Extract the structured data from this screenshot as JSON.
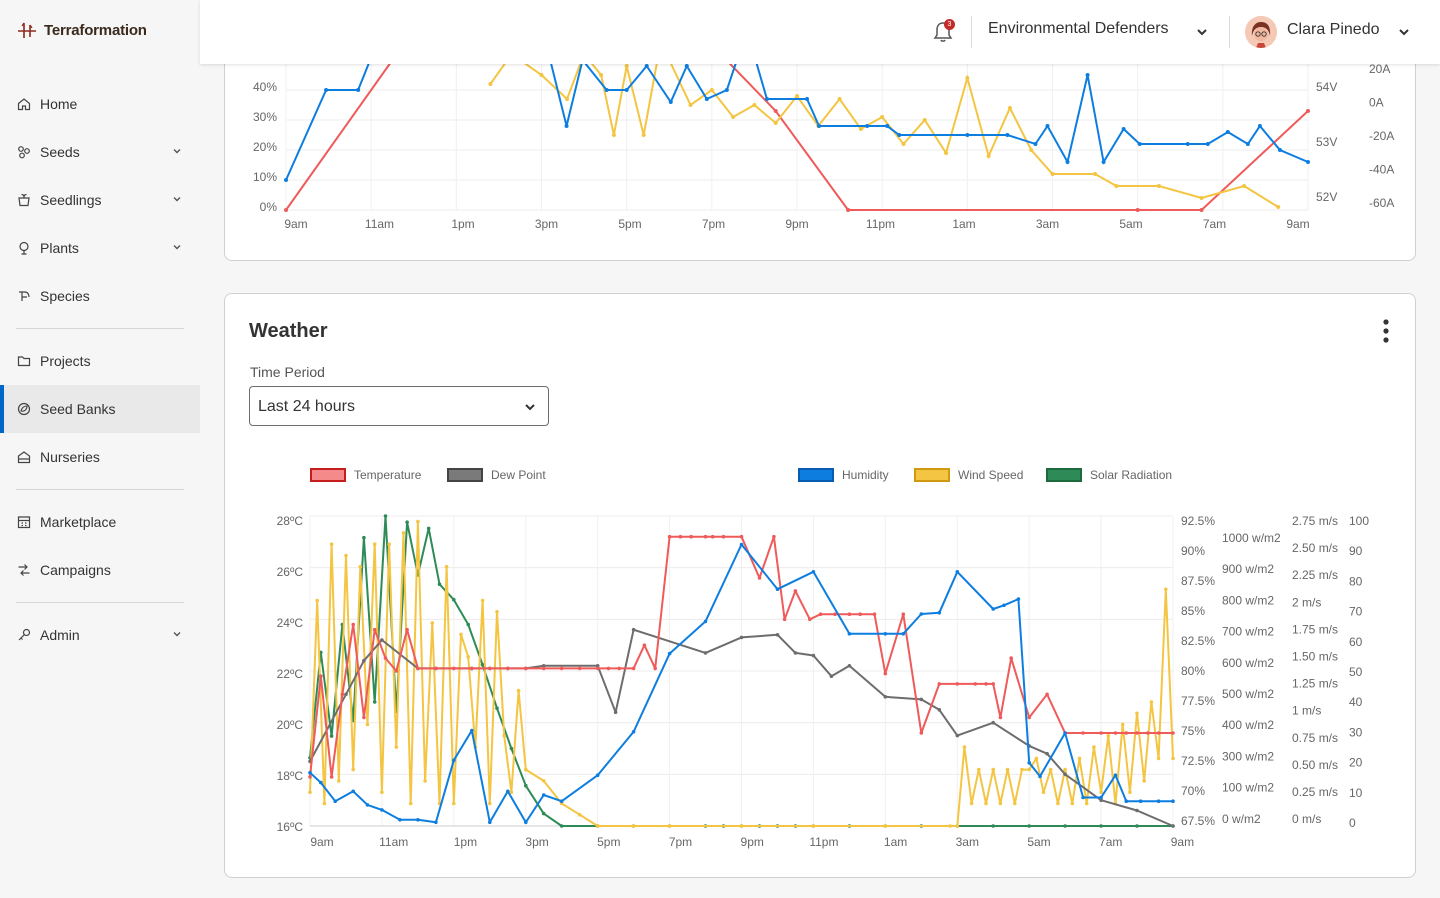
{
  "brand": {
    "name": "Terraformation"
  },
  "sidebar": {
    "items": [
      {
        "label": "Home",
        "icon": "home-icon",
        "chevron": false
      },
      {
        "label": "Seeds",
        "icon": "seeds-icon",
        "chevron": true
      },
      {
        "label": "Seedlings",
        "icon": "seedlings-icon",
        "chevron": true
      },
      {
        "label": "Plants",
        "icon": "plants-icon",
        "chevron": true
      },
      {
        "label": "Species",
        "icon": "species-icon",
        "chevron": false
      },
      {
        "label": "Projects",
        "icon": "folder-icon",
        "chevron": false
      },
      {
        "label": "Seed Banks",
        "icon": "seed-bank-icon",
        "chevron": false,
        "active": true
      },
      {
        "label": "Nurseries",
        "icon": "nursery-icon",
        "chevron": false
      },
      {
        "label": "Marketplace",
        "icon": "marketplace-icon",
        "chevron": false
      },
      {
        "label": "Campaigns",
        "icon": "campaigns-icon",
        "chevron": false
      },
      {
        "label": "Admin",
        "icon": "key-icon",
        "chevron": true
      }
    ]
  },
  "header": {
    "notification_count": "3",
    "organization": "Environmental Defenders",
    "user_name": "Clara Pinedo"
  },
  "top_chart": {
    "left_ticks": [
      "40%",
      "30%",
      "20%",
      "10%",
      "0%"
    ],
    "right_ticks_a": [
      "54V",
      "53V",
      "52V"
    ],
    "right_ticks_b": [
      "20A",
      "0A",
      "-20A",
      "-40A",
      "-60A"
    ],
    "x_ticks": [
      "9am",
      "11am",
      "1pm",
      "3pm",
      "5pm",
      "7pm",
      "9pm",
      "11pm",
      "1am",
      "3am",
      "5am",
      "7am",
      "9am"
    ],
    "colors": {
      "red": "#ef5a5a",
      "blue": "#0d7ee0",
      "yellow": "#f4c542"
    }
  },
  "weather": {
    "title": "Weather",
    "time_period_label": "Time Period",
    "time_period_value": "Last 24 hours",
    "legend": [
      {
        "name": "Temperature",
        "color": "#ef5a5a"
      },
      {
        "name": "Dew Point",
        "color": "#6d6d6d"
      },
      {
        "name": "Humidity",
        "color": "#0d7ee0"
      },
      {
        "name": "Wind Speed",
        "color": "#f4c542"
      },
      {
        "name": "Solar Radiation",
        "color": "#2e8b57"
      }
    ]
  },
  "chart_data": {
    "type": "line",
    "x_ticks": [
      "9am",
      "11am",
      "1pm",
      "3pm",
      "5pm",
      "7pm",
      "9pm",
      "11pm",
      "1am",
      "3am",
      "5am",
      "7am",
      "9am"
    ],
    "axes": {
      "temperature": {
        "ticks": [
          "28ºC",
          "26ºC",
          "24ºC",
          "22ºC",
          "20ºC",
          "18ºC",
          "16ºC"
        ],
        "range": [
          16,
          28
        ]
      },
      "humidity": {
        "ticks": [
          "92.5%",
          "90%",
          "87.5%",
          "85%",
          "82.5%",
          "80%",
          "77.5%",
          "75%",
          "72.5%",
          "70%",
          "67.5%"
        ],
        "range": [
          67.5,
          92.5
        ]
      },
      "solar": {
        "ticks": [
          "1000 w/m2",
          "900 w/m2",
          "800 w/m2",
          "700 w/m2",
          "600 w/m2",
          "500 w/m2",
          "400 w/m2",
          "300 w/m2",
          "100 w/m2",
          "0 w/m2"
        ],
        "range": [
          0,
          1000
        ]
      },
      "wind": {
        "ticks": [
          "2.75 m/s",
          "2.50 m/s",
          "2.25 m/s",
          "2 m/s",
          "1.75 m/s",
          "1.50 m/s",
          "1.25 m/s",
          "1 m/s",
          "0.75 m/s",
          "0.50 m/s",
          "0.25 m/s",
          "0 m/s"
        ],
        "range": [
          0,
          2.75
        ]
      },
      "percent": {
        "ticks": [
          "100",
          "90",
          "80",
          "70",
          "60",
          "50",
          "40",
          "30",
          "20",
          "10",
          "0"
        ],
        "range": [
          0,
          100
        ]
      }
    },
    "series": [
      {
        "name": "Temperature",
        "axis": "temperature",
        "color": "#ef5a5a",
        "x": [
          0,
          0.3,
          0.6,
          0.9,
          1.2,
          1.5,
          1.8,
          2.1,
          2.4,
          2.7,
          3,
          3.5,
          4,
          4.5,
          5,
          5.5,
          6,
          6.5,
          7,
          7.5,
          8,
          8.3,
          8.6,
          9,
          9.3,
          9.6,
          10,
          10.3,
          10.6,
          11,
          11.2,
          11.5,
          12,
          12.5,
          12.9,
          13.2,
          13.5,
          13.9,
          14.2,
          14.6,
          15,
          15.3,
          15.7,
          16,
          16.5,
          17,
          17.5,
          18,
          18.5,
          18.8,
          19,
          19.2,
          19.5,
          20,
          20.5,
          21,
          21.5,
          22,
          22.4,
          22.7,
          23,
          23.3,
          23.6,
          24
        ],
        "y": [
          17.9,
          21.8,
          17.9,
          21.1,
          23.8,
          20.2,
          23.6,
          22.5,
          22.0,
          23.6,
          22.1,
          22.1,
          22.1,
          22.1,
          22.1,
          22.1,
          22.1,
          22.1,
          22.1,
          22.1,
          22.1,
          22.1,
          22.1,
          22.1,
          23.0,
          22.1,
          27.2,
          27.2,
          27.2,
          27.2,
          27.2,
          27.2,
          27.2,
          25.6,
          27.2,
          24.0,
          25.1,
          24.0,
          24.2,
          24.2,
          24.2,
          24.2,
          24.2,
          21.9,
          24.2,
          19.6,
          21.5,
          21.5,
          21.5,
          21.5,
          21.5,
          20.2,
          22.5,
          20.2,
          21.1,
          19.6,
          19.6,
          19.6,
          19.6,
          19.6,
          19.6,
          19.6,
          19.6,
          19.6
        ]
      },
      {
        "name": "Dew Point",
        "axis": "temperature",
        "color": "#6d6d6d",
        "x": [
          0,
          1,
          1.5,
          2,
          3,
          3.5,
          4.5,
          5,
          5.5,
          6,
          6.5,
          8,
          8.5,
          9,
          11,
          12,
          13,
          13.5,
          14,
          14.5,
          15,
          16,
          17,
          17.5,
          18,
          19,
          20,
          20.5,
          21,
          22,
          23,
          24
        ],
        "y": [
          18.5,
          21.1,
          22.4,
          23.2,
          22.1,
          22.1,
          22.1,
          22.1,
          22.1,
          22.1,
          22.2,
          22.2,
          20.4,
          23.6,
          22.7,
          23.3,
          23.4,
          22.7,
          22.6,
          21.8,
          22.2,
          21.0,
          20.9,
          20.5,
          19.5,
          20.0,
          19.1,
          18.8,
          18.0,
          17.0,
          16.6,
          16.0
        ]
      },
      {
        "name": "Humidity",
        "axis": "humidity",
        "color": "#0d7ee0",
        "x": [
          0,
          0.3,
          0.7,
          1.2,
          1.6,
          2,
          2.5,
          3,
          3.5,
          4,
          4.5,
          5,
          5.5,
          6,
          6.5,
          7,
          8,
          9,
          10,
          11,
          12,
          13,
          14,
          15,
          16,
          16.5,
          17,
          17.5,
          18,
          19,
          19.3,
          19.7,
          20,
          20.3,
          21,
          21.5,
          22,
          22.4,
          22.7,
          23.1,
          23.6,
          24
        ],
        "y": [
          71.8,
          71.0,
          69.5,
          70.3,
          69.2,
          68.8,
          68.0,
          68.0,
          67.8,
          72.8,
          75.2,
          67.8,
          70.3,
          67.8,
          70.0,
          69.5,
          71.6,
          75.1,
          81.4,
          84.0,
          90.2,
          86.6,
          88.0,
          83.0,
          83.0,
          83.0,
          84.6,
          84.7,
          88.0,
          85.0,
          85.3,
          85.8,
          72.6,
          71.5,
          75.0,
          69.8,
          69.8,
          71.6,
          69.5,
          69.5,
          69.5,
          69.5
        ]
      },
      {
        "name": "Wind Speed",
        "axis": "wind",
        "color": "#f4c542",
        "x": [
          0,
          0.2,
          0.4,
          0.6,
          0.8,
          1,
          1.2,
          1.4,
          1.6,
          1.8,
          2,
          2.2,
          2.4,
          2.6,
          2.8,
          3,
          3.2,
          3.4,
          3.6,
          3.8,
          4,
          4.2,
          4.4,
          4.6,
          4.8,
          5,
          5.2,
          5.4,
          5.6,
          5.8,
          6,
          6.5,
          7,
          7.5,
          8,
          9,
          10,
          12,
          14,
          16,
          17.8,
          18,
          18.2,
          18.4,
          18.6,
          18.8,
          19,
          19.2,
          19.4,
          19.6,
          19.8,
          20,
          20.2,
          20.4,
          20.6,
          20.8,
          21,
          21.2,
          21.4,
          21.6,
          21.8,
          22,
          22.2,
          22.4,
          22.6,
          22.8,
          23,
          23.2,
          23.4,
          23.6,
          23.8,
          24
        ],
        "y": [
          0.3,
          2.0,
          0.2,
          2.5,
          0.4,
          2.4,
          0.5,
          2.3,
          0.9,
          2.5,
          0.3,
          2.5,
          0.7,
          2.6,
          0.2,
          2.7,
          0.4,
          1.8,
          0.2,
          2.3,
          0.2,
          1.7,
          1.5,
          0.7,
          2.0,
          0.2,
          1.9,
          0.8,
          0.3,
          1.2,
          0.5,
          0.4,
          0.2,
          0.1,
          0.0,
          0.0,
          0.0,
          0.0,
          0.0,
          0.0,
          0.0,
          0.0,
          0.7,
          0.2,
          0.5,
          0.2,
          0.5,
          0.2,
          0.5,
          0.2,
          0.5,
          0.5,
          0.6,
          0.3,
          0.5,
          0.2,
          0.5,
          0.2,
          0.6,
          0.2,
          0.7,
          0.3,
          0.8,
          0.2,
          0.9,
          0.3,
          1.0,
          0.4,
          1.1,
          0.6,
          2.1,
          0.6
        ]
      },
      {
        "name": "Solar Radiation",
        "axis": "solar",
        "color": "#2e8b57",
        "x": [
          0,
          0.3,
          0.6,
          0.9,
          1.2,
          1.5,
          1.8,
          2.1,
          2.4,
          2.7,
          3,
          3.3,
          3.6,
          4,
          4.4,
          4.8,
          5.2,
          5.6,
          6,
          6.5,
          7,
          8,
          9,
          10,
          11,
          11.5,
          12,
          12.5,
          13,
          13.5,
          14,
          15,
          16,
          17,
          18,
          19,
          20,
          21,
          22,
          23,
          24
        ],
        "y": [
          220,
          560,
          290,
          650,
          340,
          930,
          400,
          1000,
          370,
          980,
          810,
          960,
          780,
          730,
          650,
          520,
          380,
          250,
          130,
          40,
          0,
          0,
          0,
          0,
          0,
          0,
          0,
          0,
          0,
          0,
          0,
          0,
          0,
          0,
          0,
          0,
          0,
          0,
          0,
          0,
          0
        ]
      }
    ]
  }
}
